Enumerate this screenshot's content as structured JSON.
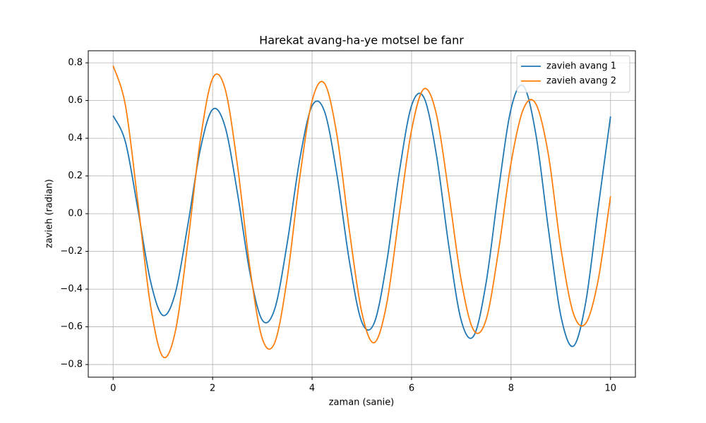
{
  "chart_data": {
    "type": "line",
    "title": "Harekat avang-ha-ye motsel be fanr",
    "x_label": "zaman (sanie)",
    "y_label": "zavieh (radian)",
    "x": [
      0,
      0.25,
      0.5,
      0.75,
      1,
      1.25,
      1.5,
      1.75,
      2,
      2.25,
      2.5,
      2.75,
      3,
      3.25,
      3.5,
      3.75,
      4,
      4.25,
      4.5,
      4.75,
      5,
      5.25,
      5.5,
      5.75,
      6,
      6.25,
      6.5,
      6.75,
      7,
      7.25,
      7.5,
      7.75,
      8,
      8.25,
      8.5,
      8.75,
      9,
      9.25,
      9.5,
      9.75,
      10
    ],
    "series": [
      {
        "name": "zavieh avang 1",
        "color": "#1f77b4",
        "values": [
          0.52,
          0.378,
          0.02,
          -0.356,
          -0.539,
          -0.421,
          -0.063,
          0.337,
          0.553,
          0.462,
          0.109,
          -0.313,
          -0.565,
          -0.504,
          -0.156,
          0.285,
          0.572,
          0.542,
          0.206,
          -0.252,
          -0.575,
          -0.579,
          -0.258,
          0.215,
          0.573,
          0.615,
          0.311,
          -0.174,
          -0.568,
          -0.648,
          -0.364,
          0.129,
          0.556,
          0.677,
          0.419,
          -0.08,
          -0.54,
          -0.703,
          -0.472,
          0.027,
          0.516
        ]
      },
      {
        "name": "zavieh avang 2",
        "color": "#ff7f0e",
        "values": [
          0.785,
          0.571,
          0.055,
          -0.484,
          -0.758,
          -0.625,
          -0.159,
          0.385,
          0.717,
          0.663,
          0.256,
          -0.287,
          -0.663,
          -0.683,
          -0.342,
          0.187,
          0.598,
          0.691,
          0.416,
          -0.09,
          -0.524,
          -0.684,
          -0.478,
          -0.009,
          0.443,
          0.662,
          0.526,
          0.105,
          -0.357,
          -0.619,
          -0.561,
          -0.192,
          0.269,
          0.556,
          0.582,
          0.314,
          -0.179,
          -0.526,
          -0.582,
          -0.354,
          0.092
        ]
      }
    ],
    "xlim": [
      -0.5,
      10.5
    ],
    "ylim": [
      -0.867,
      0.864
    ],
    "xticks": [
      0,
      2,
      4,
      6,
      8,
      10
    ],
    "yticks": [
      {
        "value": -0.8,
        "label": "−0.8"
      },
      {
        "value": -0.6,
        "label": "−0.6"
      },
      {
        "value": -0.4,
        "label": "−0.4"
      },
      {
        "value": -0.2,
        "label": "−0.2"
      },
      {
        "value": 0,
        "label": "0.0"
      },
      {
        "value": 0.2,
        "label": "0.2"
      },
      {
        "value": 0.4,
        "label": "0.4"
      },
      {
        "value": 0.6,
        "label": "0.6"
      },
      {
        "value": 0.8,
        "label": "0.8"
      }
    ],
    "grid": true,
    "legend": "upper right"
  }
}
